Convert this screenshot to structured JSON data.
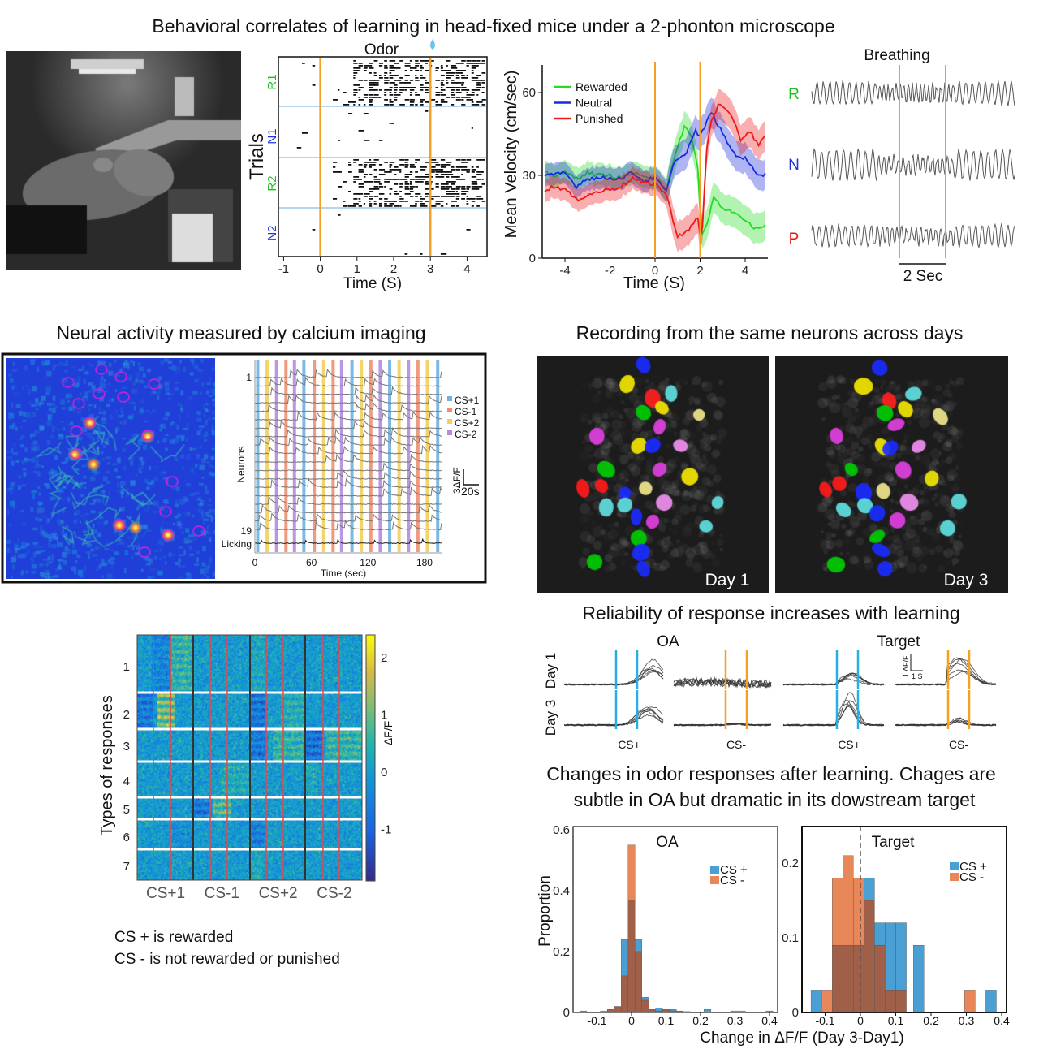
{
  "title": "Behavioral correlates of learning in head-fixed mice under a 2-phonton microscope",
  "raster": {
    "title": "Odor",
    "reward_icon": "water-drop-icon",
    "ylabel": "Trials",
    "xlabel": "Time (S)",
    "xticks": [
      "-1",
      "0",
      "1",
      "2",
      "3",
      "4"
    ],
    "groups": [
      {
        "label": "R1",
        "color": "#1fbf1f"
      },
      {
        "label": "N1",
        "color": "#2233dd"
      },
      {
        "label": "R2",
        "color": "#1fbf1f"
      },
      {
        "label": "N2",
        "color": "#2233dd"
      }
    ],
    "event_times": [
      0,
      3
    ]
  },
  "breathing": {
    "title": "Breathing",
    "rows": [
      {
        "label": "R",
        "color": "#1fbf1f"
      },
      {
        "label": "N",
        "color": "#2233dd"
      },
      {
        "label": "P",
        "color": "#ee1111"
      }
    ],
    "scalebar": "2 Sec"
  },
  "calcium": {
    "title": "Neural activity measured by calcium imaging",
    "ylabel": "Neurons",
    "first_neuron": "1",
    "last_neuron": "19",
    "licking_label": "Licking",
    "scalebar_y": "3ΔF/F",
    "scalebar_x": "20s"
  },
  "days": {
    "title": "Recording from the same neurons across days",
    "day1": "Day 1",
    "day3": "Day 3"
  },
  "reliability": {
    "title": "Reliability of response increases with learning",
    "groups": [
      "OA",
      "Target"
    ],
    "rows": [
      "Day 1",
      "Day 3"
    ],
    "columns": [
      "CS+",
      "CS-",
      "CS+",
      "CS-"
    ],
    "scalebar_y": "1 ΔF/F",
    "scalebar_x": "1 S"
  },
  "changes": {
    "title_line1": "Changes in odor responses after learning. Chages are",
    "title_line2": "subtle in OA but dramatic in its dowstream target"
  },
  "notes": {
    "line1": "CS + is rewarded",
    "line2": "CS - is not rewarded or punished"
  },
  "colors": {
    "event_line": "#f5a020",
    "cs_plus": "#4a9fd4",
    "cs_minus": "#e8875a",
    "overlap": "#9f5f48"
  },
  "chart_data": [
    {
      "type": "line",
      "title": "",
      "xlabel": "Time (S)",
      "ylabel": "Mean Velocity (cm/sec)",
      "xlim": [
        -5,
        5
      ],
      "ylim": [
        0,
        70
      ],
      "xticks": [
        -4,
        -2,
        0,
        2,
        4
      ],
      "yticks": [
        0,
        30,
        60
      ],
      "event_lines": [
        0,
        2
      ],
      "legend": "top-left",
      "series": [
        {
          "name": "Rewarded",
          "color": "#22dd22",
          "x": [
            -5,
            -4.5,
            -4,
            -3.5,
            -3,
            -2.5,
            -2,
            -1.5,
            -1,
            -0.5,
            0,
            0.5,
            1,
            1.3,
            1.6,
            1.9,
            2.05,
            2.3,
            2.6,
            3,
            3.5,
            4,
            4.5,
            5
          ],
          "y": [
            31,
            30,
            31,
            29,
            31,
            30,
            30,
            29,
            31,
            29,
            30,
            25,
            40,
            48,
            44,
            33,
            8,
            12,
            22,
            18,
            17,
            13,
            11,
            12
          ]
        },
        {
          "name": "Neutral",
          "color": "#1a2bdd",
          "x": [
            -5,
            -4.5,
            -4,
            -3.5,
            -3,
            -2.5,
            -2,
            -1.5,
            -1,
            -0.5,
            0,
            0.5,
            0.9,
            1.3,
            1.8,
            2,
            2.5,
            3,
            3.5,
            4,
            4.5,
            5
          ],
          "y": [
            30,
            30,
            31,
            26,
            29,
            29,
            29,
            29,
            31,
            28,
            29,
            24,
            36,
            37,
            46,
            44,
            53,
            45,
            38,
            36,
            31,
            30
          ]
        },
        {
          "name": "Punished",
          "color": "#ee1a1a",
          "x": [
            -5,
            -4.5,
            -4,
            -3.5,
            -3,
            -2.5,
            -2,
            -1.5,
            -1,
            -0.5,
            0,
            0.5,
            1,
            1.5,
            1.9,
            2.05,
            2.3,
            2.5,
            2.85,
            3.5,
            3.8,
            4.2,
            4.6,
            5
          ],
          "y": [
            24,
            26,
            25,
            21,
            23,
            24,
            25,
            26,
            29,
            27,
            27,
            23,
            8,
            10,
            15,
            4,
            40,
            50,
            56,
            50,
            43,
            46,
            41,
            45
          ]
        }
      ]
    },
    {
      "type": "bar",
      "title": "OA",
      "xlabel": "Change in ΔF/F (Day 3-Day1)",
      "ylabel": "Proportion",
      "xlim": [
        -0.15,
        0.42
      ],
      "ylim": [
        0,
        0.6
      ],
      "xticks": [
        "-0.1",
        "0",
        "0.1",
        "0.2",
        "0.3",
        "0.4"
      ],
      "yticks": [
        "0",
        "0.2",
        "0.4",
        "0.6"
      ],
      "legend": "top-right",
      "bin_width": 0.02,
      "x": [
        -0.14,
        -0.08,
        -0.06,
        -0.04,
        -0.02,
        0,
        0.02,
        0.04,
        0.06,
        0.08,
        0.1,
        0.12,
        0.14,
        0.16,
        0.22,
        0.3,
        0.32,
        0.4
      ],
      "series": [
        {
          "name": "CS +",
          "values": [
            0.005,
            0,
            0.01,
            0.02,
            0.24,
            0.37,
            0.24,
            0.05,
            0.01,
            0.015,
            0.01,
            0.01,
            0.005,
            0,
            0.01,
            0,
            0,
            0.005
          ]
        },
        {
          "name": "CS -",
          "values": [
            0,
            0.005,
            0.01,
            0.02,
            0.12,
            0.55,
            0.2,
            0.04,
            0.01,
            0.005,
            0.01,
            0.005,
            0.003,
            0.003,
            0,
            0.005,
            0.005,
            0
          ]
        }
      ]
    },
    {
      "type": "bar",
      "title": "Target",
      "xlim": [
        -0.13,
        0.42
      ],
      "ylim": [
        0,
        0.25
      ],
      "xticks": [
        "-0.1",
        "0",
        "0.1",
        "0.2",
        "0.3",
        "0.4"
      ],
      "yticks": [
        "0",
        "0.1",
        "0.2"
      ],
      "reference_line": 0,
      "legend": "top-right",
      "bin_width": 0.03,
      "x": [
        -0.125,
        -0.095,
        -0.065,
        -0.035,
        -0.005,
        0.025,
        0.055,
        0.085,
        0.115,
        0.165,
        0.31,
        0.37
      ],
      "series": [
        {
          "name": "CS +",
          "values": [
            0.03,
            0,
            0.09,
            0.09,
            0.09,
            0.18,
            0.12,
            0.12,
            0.12,
            0.09,
            0,
            0.03
          ]
        },
        {
          "name": "CS -",
          "values": [
            0,
            0.03,
            0.18,
            0.21,
            0.18,
            0.15,
            0.09,
            0.03,
            0.03,
            0,
            0.03,
            0
          ]
        }
      ]
    },
    {
      "type": "heatmap",
      "ylabel": "Types of responses",
      "row_groups": [
        "1",
        "2",
        "3",
        "4",
        "5",
        "6",
        "7"
      ],
      "categories": [
        "CS+1",
        "CS-1",
        "CS+2",
        "CS-2"
      ],
      "colorbar_label": "ΔF/F",
      "colorbar_ticks": [
        "2",
        "1",
        "0",
        "-1"
      ],
      "color_range": [
        -1.9,
        2.4
      ]
    },
    {
      "type": "line",
      "xlabel": "Time (sec)",
      "ylabel": "Neurons",
      "xticks": [
        "0",
        "60",
        "120",
        "180"
      ],
      "legend": "right",
      "conditions": [
        {
          "name": "CS+1",
          "color": "#6fb3e0"
        },
        {
          "name": "CS-1",
          "color": "#ef8f6f"
        },
        {
          "name": "CS+2",
          "color": "#f2cf5a"
        },
        {
          "name": "CS-2",
          "color": "#b48be0"
        }
      ],
      "stimuli": [
        {
          "t": 3,
          "c": "CS+1"
        },
        {
          "t": 13,
          "c": "CS+2"
        },
        {
          "t": 23,
          "c": "CS-2"
        },
        {
          "t": 33,
          "c": "CS-1"
        },
        {
          "t": 42,
          "c": "CS-2"
        },
        {
          "t": 52,
          "c": "CS+1"
        },
        {
          "t": 63,
          "c": "CS-1"
        },
        {
          "t": 73,
          "c": "CS+2"
        },
        {
          "t": 83,
          "c": "CS-1"
        },
        {
          "t": 92,
          "c": "CS-2"
        },
        {
          "t": 103,
          "c": "CS+1"
        },
        {
          "t": 113,
          "c": "CS+2"
        },
        {
          "t": 123,
          "c": "CS-1"
        },
        {
          "t": 133,
          "c": "CS-2"
        },
        {
          "t": 143,
          "c": "CS+1"
        },
        {
          "t": 153,
          "c": "CS+2"
        },
        {
          "t": 163,
          "c": "CS-2"
        },
        {
          "t": 173,
          "c": "CS-1"
        },
        {
          "t": 183,
          "c": "CS+2"
        },
        {
          "t": 194,
          "c": "CS+1"
        }
      ]
    }
  ]
}
